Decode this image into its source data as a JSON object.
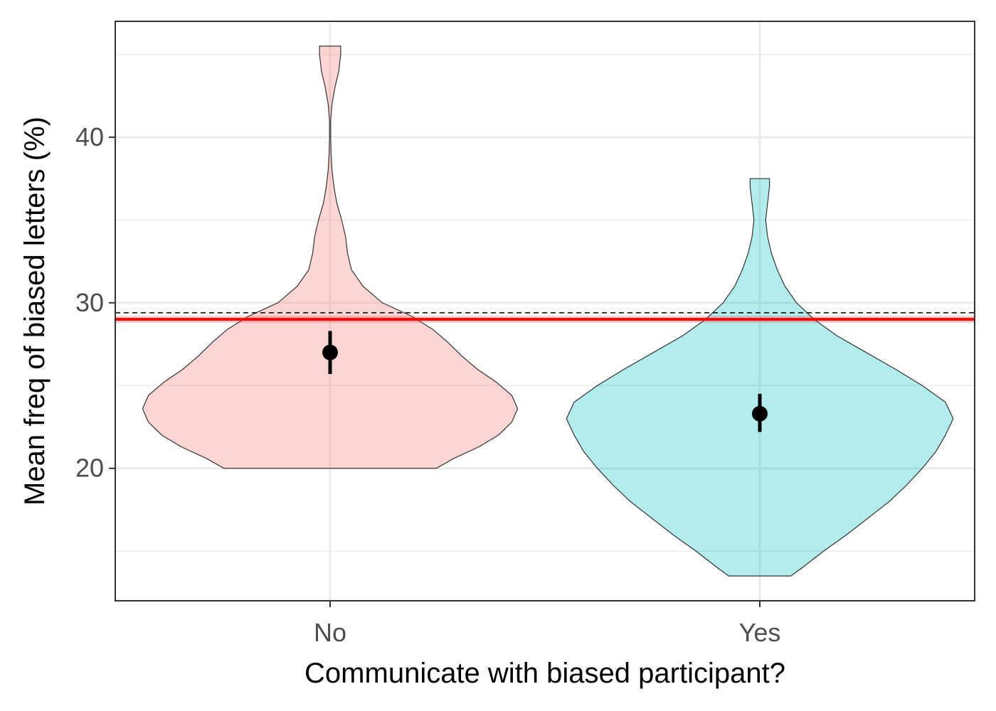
{
  "chart_data": {
    "type": "violin",
    "xlabel": "Communicate with biased participant?",
    "ylabel": "Mean freq of biased letters (%)",
    "categories": [
      "No",
      "Yes"
    ],
    "ylim": [
      12,
      47
    ],
    "yticks": [
      20,
      30,
      40
    ],
    "yticks_minor": [
      15,
      25,
      35,
      45
    ],
    "grid": true,
    "groups": [
      {
        "category": "No",
        "color": "#F8766D",
        "mean": 27.0,
        "ci_low": 25.7,
        "ci_high": 28.3,
        "min": 20.0,
        "max": 45.5,
        "density_profile": [
          [
            20.0,
            0.55
          ],
          [
            20.6,
            0.64
          ],
          [
            21.3,
            0.77
          ],
          [
            22.0,
            0.87
          ],
          [
            22.8,
            0.94
          ],
          [
            23.6,
            0.97
          ],
          [
            24.4,
            0.94
          ],
          [
            25.2,
            0.86
          ],
          [
            26.0,
            0.76
          ],
          [
            26.8,
            0.68
          ],
          [
            27.6,
            0.61
          ],
          [
            28.4,
            0.53
          ],
          [
            29.2,
            0.42
          ],
          [
            30.0,
            0.27
          ],
          [
            31.0,
            0.17
          ],
          [
            32.0,
            0.11
          ],
          [
            33.0,
            0.09
          ],
          [
            34.0,
            0.08
          ],
          [
            35.0,
            0.06
          ],
          [
            36.0,
            0.035
          ],
          [
            37.0,
            0.02
          ],
          [
            38.0,
            0.01
          ],
          [
            39.0,
            0.005
          ],
          [
            40.0,
            0.003
          ],
          [
            41.0,
            0.003
          ],
          [
            42.0,
            0.01
          ],
          [
            43.0,
            0.025
          ],
          [
            44.0,
            0.045
          ],
          [
            45.0,
            0.055
          ],
          [
            45.5,
            0.055
          ]
        ]
      },
      {
        "category": "Yes",
        "color": "#00BFC4",
        "mean": 23.3,
        "ci_low": 22.2,
        "ci_high": 24.5,
        "min": 13.5,
        "max": 37.5,
        "density_profile": [
          [
            13.5,
            0.16
          ],
          [
            14.0,
            0.22
          ],
          [
            15.0,
            0.33
          ],
          [
            16.0,
            0.45
          ],
          [
            17.0,
            0.56
          ],
          [
            18.0,
            0.67
          ],
          [
            19.0,
            0.76
          ],
          [
            20.0,
            0.84
          ],
          [
            21.0,
            0.91
          ],
          [
            22.0,
            0.96
          ],
          [
            23.0,
            1.0
          ],
          [
            24.0,
            0.96
          ],
          [
            25.0,
            0.84
          ],
          [
            26.0,
            0.7
          ],
          [
            27.0,
            0.55
          ],
          [
            28.0,
            0.4
          ],
          [
            29.0,
            0.28
          ],
          [
            30.0,
            0.19
          ],
          [
            31.0,
            0.13
          ],
          [
            32.0,
            0.09
          ],
          [
            33.0,
            0.06
          ],
          [
            34.0,
            0.04
          ],
          [
            35.0,
            0.03
          ],
          [
            36.0,
            0.04
          ],
          [
            37.0,
            0.05
          ],
          [
            37.5,
            0.05
          ]
        ]
      }
    ],
    "reference_lines": [
      {
        "y": 29.0,
        "style": "solid",
        "color": "#FF0000"
      },
      {
        "y": 29.4,
        "style": "dashed",
        "color": "#000000"
      }
    ]
  }
}
